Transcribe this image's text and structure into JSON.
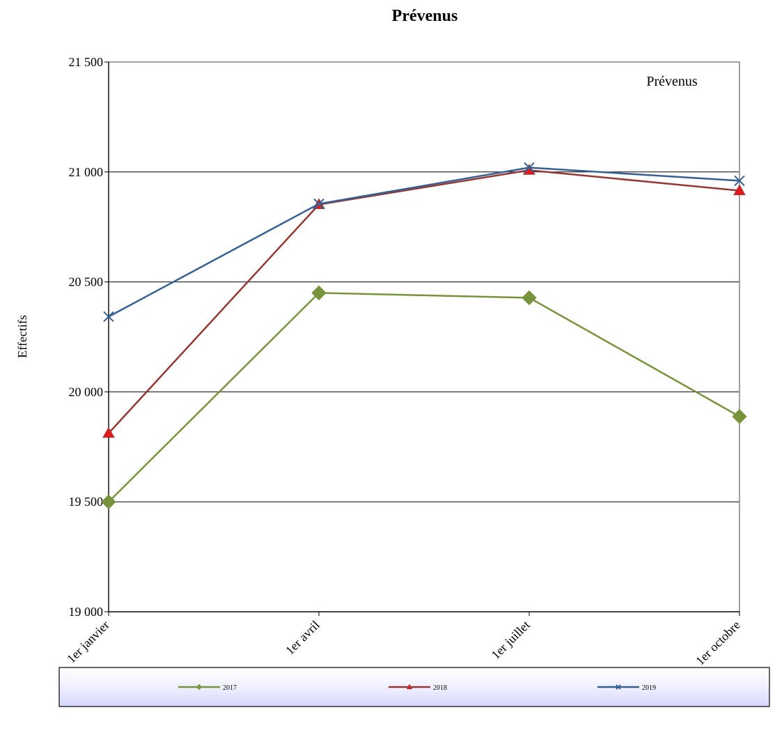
{
  "chart_data": {
    "type": "line",
    "title": "Prévenus",
    "annotation": "Prévenus",
    "xlabel": "",
    "ylabel": "Effectifs",
    "categories": [
      "1er janvier",
      "1er avril",
      "1er juillet",
      "1er octobre"
    ],
    "ylim": [
      19000,
      21500
    ],
    "yticks": [
      19000,
      19500,
      20000,
      20500,
      21000,
      21500
    ],
    "ytick_labels": [
      "19 000",
      "19 500",
      "20 000",
      "20 500",
      "21 000",
      "21 500"
    ],
    "grid": true,
    "legend_position": "bottom",
    "series": [
      {
        "name": "2017",
        "values": [
          19500,
          20450,
          20428,
          19888
        ],
        "color": "#77933C",
        "marker": "diamond"
      },
      {
        "name": "2018",
        "values": [
          19812,
          20852,
          21008,
          20915
        ],
        "color": "#953735",
        "marker_color": "#E31A1C",
        "marker": "triangle"
      },
      {
        "name": "2019",
        "values": [
          20342,
          20855,
          21020,
          20960
        ],
        "color": "#376092",
        "marker": "x"
      }
    ]
  }
}
